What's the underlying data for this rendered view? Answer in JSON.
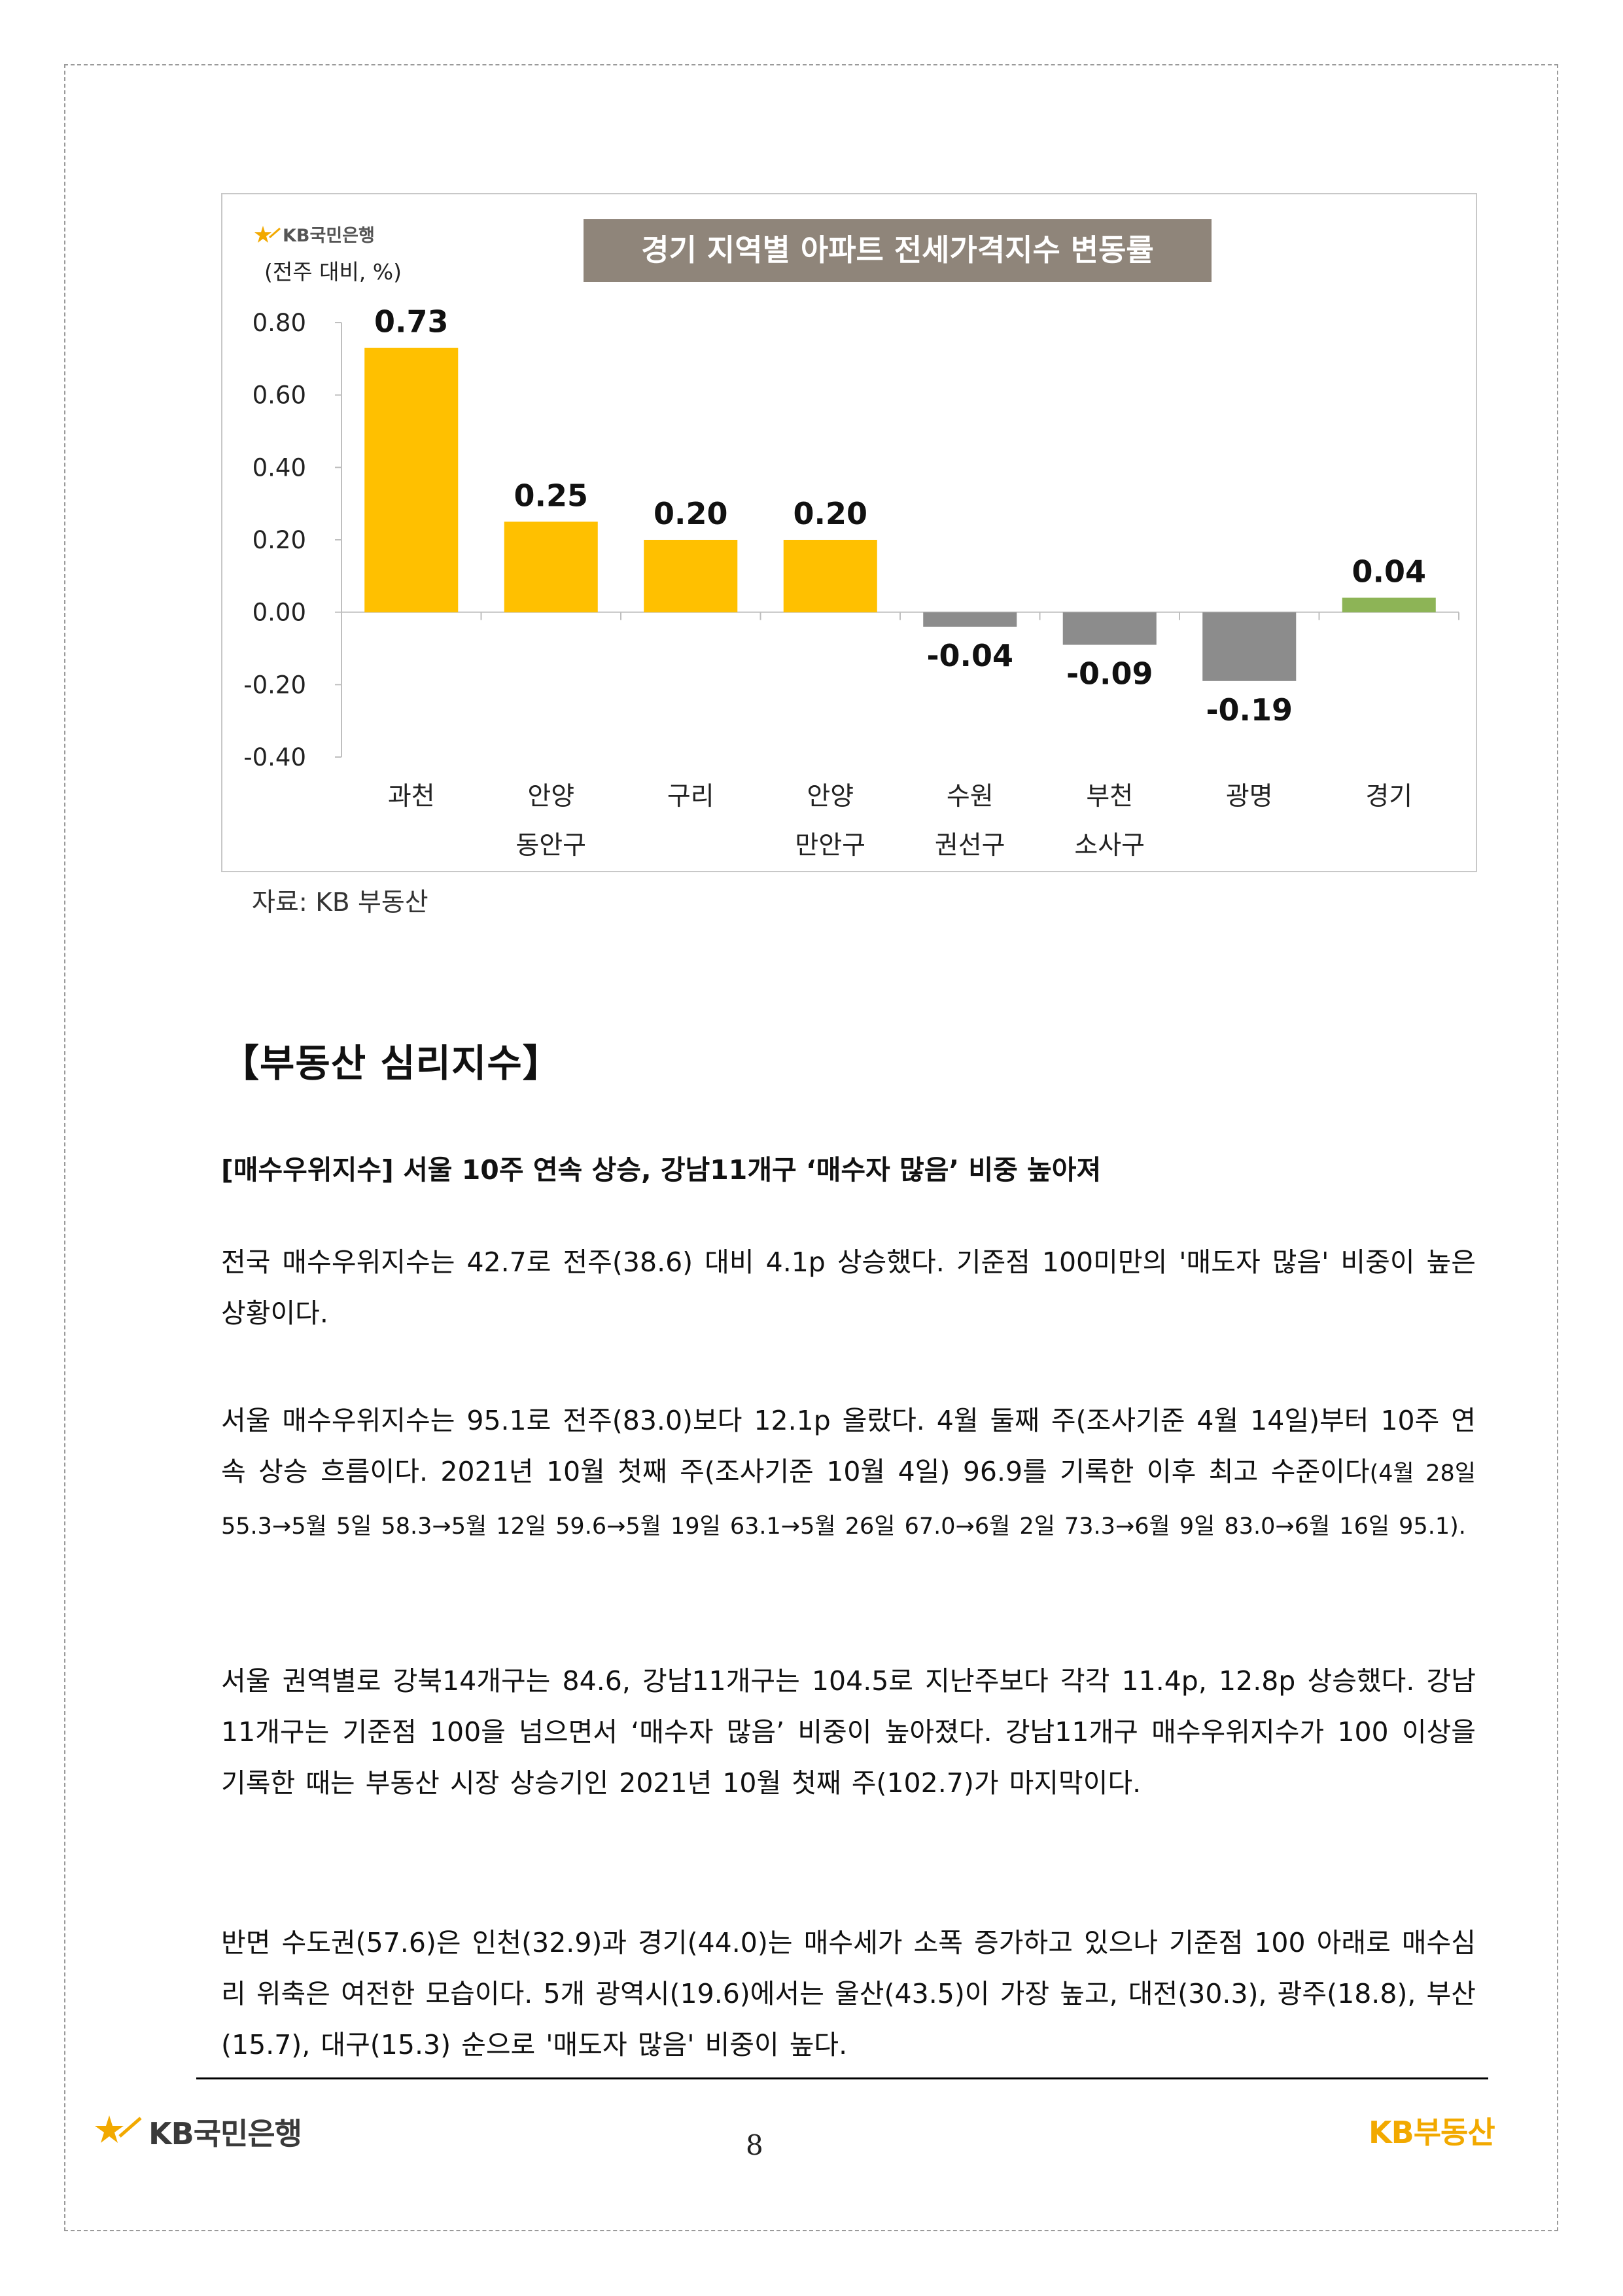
{
  "chart_data": {
    "type": "bar",
    "title": "경기 지역별 아파트 전세가격지수 변동률",
    "logo_text": "KB국민은행",
    "unit_label": "(전주 대비, %)",
    "ylim": [
      -0.4,
      0.8
    ],
    "yticks": [
      "0.80",
      "0.60",
      "0.40",
      "0.20",
      "0.00",
      "-0.20",
      "-0.40"
    ],
    "grid": false,
    "categories": [
      [
        "과천",
        ""
      ],
      [
        "안양",
        "동안구"
      ],
      [
        "구리",
        ""
      ],
      [
        "안양",
        "만안구"
      ],
      [
        "수원",
        "권선구"
      ],
      [
        "부천",
        "소사구"
      ],
      [
        "광명",
        ""
      ],
      [
        "경기",
        ""
      ]
    ],
    "values": [
      0.73,
      0.25,
      0.2,
      0.2,
      -0.04,
      -0.09,
      -0.19,
      0.04
    ],
    "labels": [
      "0.73",
      "0.25",
      "0.20",
      "0.20",
      "-0.04",
      "-0.09",
      "-0.19",
      "0.04"
    ],
    "colors": [
      "#FFC000",
      "#FFC000",
      "#FFC000",
      "#FFC000",
      "#8C8C8C",
      "#8C8C8C",
      "#8C8C8C",
      "#8DB456"
    ]
  },
  "source": "자료: KB 부동산",
  "section_title": "【부동산 심리지수】",
  "subhead": "[매수우위지수] 서울 10주 연속 상승, 강남11개구 ‘매수자 많음’ 비중 높아져",
  "para1": "전국 매수우위지수는 42.7로 전주(38.6) 대비 4.1p 상승했다. 기준점 100미만의 '매도자 많음' 비중이 높은 상황이다.",
  "para2_main": "서울 매수우위지수는 95.1로 전주(83.0)보다 12.1p 올랐다. 4월 둘째 주(조사기준 4월 14일)부터 10주 연속 상승 흐름이다. 2021년 10월 첫째 주(조사기준 10월 4일) 96.9를 기록한 이후 최고 수준이다",
  "para2_small": "(4월 28일 55.3→5월 5일 58.3→5월 12일 59.6→5월 19일 63.1→5월 26일 67.0→6월 2일 73.3→6월 9일 83.0→6월 16일 95.1).",
  "para3": "서울 권역별로 강북14개구는 84.6, 강남11개구는 104.5로 지난주보다 각각 11.4p, 12.8p 상승했다. 강남11개구는 기준점 100을 넘으면서 ‘매수자 많음’ 비중이 높아졌다. 강남11개구 매수우위지수가 100 이상을 기록한 때는 부동산 시장 상승기인 2021년 10월 첫째 주(102.7)가 마지막이다.",
  "para4": "반면 수도권(57.6)은 인천(32.9)과 경기(44.0)는 매수세가 소폭 증가하고 있으나 기준점 100 아래로 매수심리 위축은 여전한 모습이다. 5개 광역시(19.6)에서는 울산(43.5)이 가장 높고, 대전(30.3), 광주(18.8), 부산(15.7), 대구(15.3) 순으로 '매도자 많음' 비중이 높다.",
  "footer": {
    "left_logo": "KB국민은행",
    "page_number": "8",
    "right_logo": "KB부동산",
    "logo_star_color": "#F2A900"
  }
}
